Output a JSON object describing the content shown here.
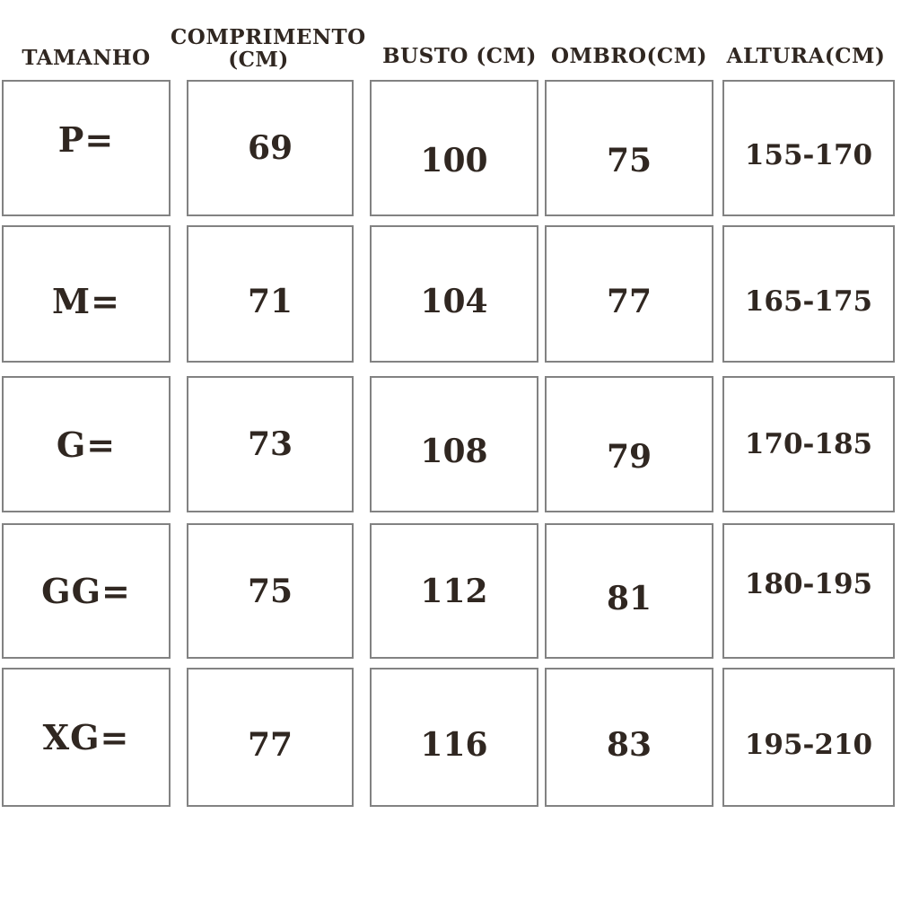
{
  "title": "Tabela de medidas (size chart)",
  "colors": {
    "text": "#302721",
    "border": "#828282",
    "bg": "#ffffff"
  },
  "table": {
    "headers": [
      {
        "line1": "TAMANHO",
        "line2": ""
      },
      {
        "line1": "COMPRIMENTO",
        "line2": "(CM)"
      },
      {
        "line1": "BUSTO (CM)",
        "line2": ""
      },
      {
        "line1": "OMBRO(CM)",
        "line2": ""
      },
      {
        "line1": "ALTURA(CM)",
        "line2": ""
      }
    ],
    "rows": [
      {
        "tamanho": "P=",
        "comprimento": "69",
        "busto": "100",
        "ombro": "75",
        "altura": "155-170"
      },
      {
        "tamanho": "M=",
        "comprimento": "71",
        "busto": "104",
        "ombro": "77",
        "altura": "165-175"
      },
      {
        "tamanho": "G=",
        "comprimento": "73",
        "busto": "108",
        "ombro": "79",
        "altura": "170-185"
      },
      {
        "tamanho": "GG=",
        "comprimento": "75",
        "busto": "112",
        "ombro": "81",
        "altura": "180-195"
      },
      {
        "tamanho": "XG=",
        "comprimento": "77",
        "busto": "116",
        "ombro": "83",
        "altura": "195-210"
      }
    ]
  },
  "chart_data": {
    "type": "table",
    "title": "",
    "columns": [
      "TAMANHO",
      "COMPRIMENTO (CM)",
      "BUSTO (CM)",
      "OMBRO(CM)",
      "ALTURA(CM)"
    ],
    "rows": [
      [
        "P=",
        "69",
        "100",
        "75",
        "155-170"
      ],
      [
        "M=",
        "71",
        "104",
        "77",
        "165-175"
      ],
      [
        "G=",
        "73",
        "108",
        "79",
        "170-185"
      ],
      [
        "GG=",
        "75",
        "112",
        "81",
        "180-195"
      ],
      [
        "XG=",
        "77",
        "116",
        "83",
        "195-210"
      ]
    ],
    "units": "cm",
    "layout": "separate bordered boxes per cell, headers as free text above columns"
  }
}
